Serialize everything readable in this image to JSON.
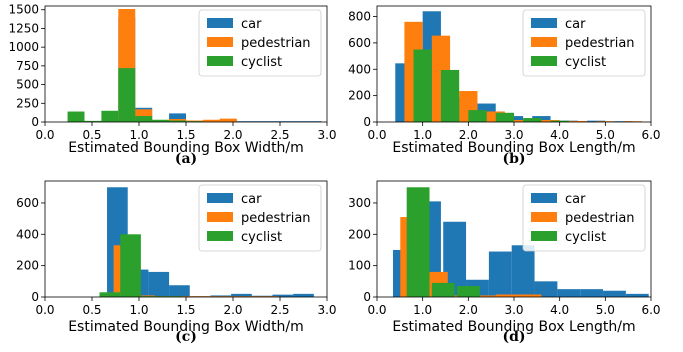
{
  "colors": {
    "car": "#1f77b4",
    "pedestrian": "#ff7f0e",
    "cyclist": "#2ca02c"
  },
  "chart_data": [
    {
      "type": "bar",
      "caption": "(a)",
      "xlabel": "Estimated Bounding Box Width/m",
      "ylabel": "",
      "xlim": [
        0.0,
        3.0
      ],
      "ylim": [
        0,
        1550
      ],
      "xticks": [
        0.0,
        0.5,
        1.0,
        1.5,
        2.0,
        2.5,
        3.0
      ],
      "xtick_labels": [
        "0.0",
        "0.5",
        "1.0",
        "1.5",
        "2.0",
        "2.5",
        "3.0"
      ],
      "yticks": [
        0,
        250,
        500,
        750,
        1000,
        1250,
        1500
      ],
      "ytick_labels": [
        "0",
        "250",
        "500",
        "750",
        "1000",
        "1250",
        "1500"
      ],
      "legend_position": "top-right",
      "bin_width": 0.18,
      "series": [
        {
          "name": "car",
          "x": [
            0.87,
            1.05,
            1.23,
            1.41,
            1.59,
            1.77,
            1.95,
            2.13,
            2.31,
            2.49,
            2.67,
            2.85
          ],
          "values": [
            1400,
            190,
            20,
            115,
            15,
            5,
            35,
            3,
            8,
            8,
            3,
            3
          ]
        },
        {
          "name": "pedestrian",
          "x": [
            0.51,
            0.69,
            0.87,
            1.05,
            1.23,
            1.41,
            1.59,
            1.77,
            1.95
          ],
          "values": [
            5,
            30,
            1510,
            170,
            15,
            40,
            20,
            30,
            45
          ]
        },
        {
          "name": "cyclist",
          "x": [
            0.33,
            0.51,
            0.69,
            0.87,
            1.05,
            1.23,
            1.41,
            1.59
          ],
          "values": [
            140,
            15,
            150,
            720,
            80,
            30,
            20,
            5
          ]
        }
      ]
    },
    {
      "type": "bar",
      "caption": "(b)",
      "xlabel": "Estimated Bounding Box Length/m",
      "ylabel": "",
      "xlim": [
        0.0,
        6.0
      ],
      "ylim": [
        0,
        880
      ],
      "xticks": [
        0.0,
        1.0,
        2.0,
        3.0,
        4.0,
        5.0,
        6.0
      ],
      "xtick_labels": [
        "0.0",
        "1.0",
        "2.0",
        "3.0",
        "4.0",
        "5.0",
        "6.0"
      ],
      "yticks": [
        0,
        200,
        400,
        600,
        800
      ],
      "ytick_labels": [
        "0",
        "200",
        "400",
        "600",
        "800"
      ],
      "legend_position": "top-right",
      "bin_width": 0.4,
      "series": [
        {
          "name": "car",
          "x": [
            0.6,
            1.2,
            1.8,
            2.4,
            3.0,
            3.6,
            4.2,
            4.8,
            5.4
          ],
          "values": [
            445,
            840,
            185,
            140,
            45,
            45,
            10,
            10,
            5
          ]
        },
        {
          "name": "pedestrian",
          "x": [
            0.8,
            1.4,
            2.0,
            2.6,
            3.2,
            3.8,
            4.4,
            5.0,
            5.6
          ],
          "values": [
            760,
            655,
            235,
            80,
            15,
            15,
            8,
            5,
            3
          ]
        },
        {
          "name": "cyclist",
          "x": [
            1.0,
            1.6,
            2.2,
            2.8,
            3.4,
            4.0
          ],
          "values": [
            550,
            395,
            90,
            70,
            30,
            10
          ]
        }
      ]
    },
    {
      "type": "bar",
      "caption": "(c)",
      "xlabel": "Estimated Bounding Box Width/m",
      "ylabel": "",
      "xlim": [
        0.0,
        3.0
      ],
      "ylim": [
        0,
        740
      ],
      "xticks": [
        0.0,
        0.5,
        1.0,
        1.5,
        2.0,
        2.5,
        3.0
      ],
      "xtick_labels": [
        "0.0",
        "0.5",
        "1.0",
        "1.5",
        "2.0",
        "2.5",
        "3.0"
      ],
      "yticks": [
        0,
        200,
        400,
        600
      ],
      "ytick_labels": [
        "0",
        "200",
        "400",
        "600"
      ],
      "legend_position": "top-right",
      "bin_width": 0.22,
      "series": [
        {
          "name": "car",
          "x": [
            0.77,
            0.99,
            1.21,
            1.43,
            1.65,
            1.87,
            2.09,
            2.31,
            2.53,
            2.75
          ],
          "values": [
            700,
            175,
            160,
            75,
            5,
            10,
            20,
            8,
            15,
            20
          ]
        },
        {
          "name": "pedestrian",
          "x": [
            0.84,
            1.06,
            1.28,
            1.5,
            1.72,
            1.94,
            2.16,
            2.38
          ],
          "values": [
            330,
            10,
            5,
            5,
            3,
            5,
            5,
            3
          ]
        },
        {
          "name": "cyclist",
          "x": [
            0.69,
            0.91,
            1.13,
            1.35
          ],
          "values": [
            30,
            400,
            5,
            3
          ]
        }
      ]
    },
    {
      "type": "bar",
      "caption": "(d)",
      "xlabel": "Estimated Bounding Box Length/m",
      "ylabel": "",
      "xlim": [
        0.0,
        6.0
      ],
      "ylim": [
        0,
        370
      ],
      "xticks": [
        0.0,
        1.0,
        2.0,
        3.0,
        4.0,
        5.0,
        6.0
      ],
      "xtick_labels": [
        "0.0",
        "1.0",
        "2.0",
        "3.0",
        "4.0",
        "5.0",
        "6.0"
      ],
      "yticks": [
        0,
        100,
        200,
        300
      ],
      "ytick_labels": [
        "0",
        "100",
        "200",
        "300"
      ],
      "legend_position": "top-right",
      "bin_width": 0.5,
      "series": [
        {
          "name": "car",
          "x": [
            0.6,
            1.15,
            1.7,
            2.2,
            2.7,
            3.2,
            3.7,
            4.2,
            4.7,
            5.2,
            5.7
          ],
          "values": [
            150,
            305,
            240,
            55,
            145,
            165,
            50,
            25,
            25,
            20,
            10
          ]
        },
        {
          "name": "pedestrian",
          "x": [
            0.76,
            1.3,
            1.85,
            2.35,
            2.85,
            3.35
          ],
          "values": [
            255,
            80,
            5,
            5,
            8,
            8
          ]
        },
        {
          "name": "cyclist",
          "x": [
            0.9,
            1.45,
            2.0
          ],
          "values": [
            350,
            45,
            35
          ]
        }
      ]
    }
  ]
}
